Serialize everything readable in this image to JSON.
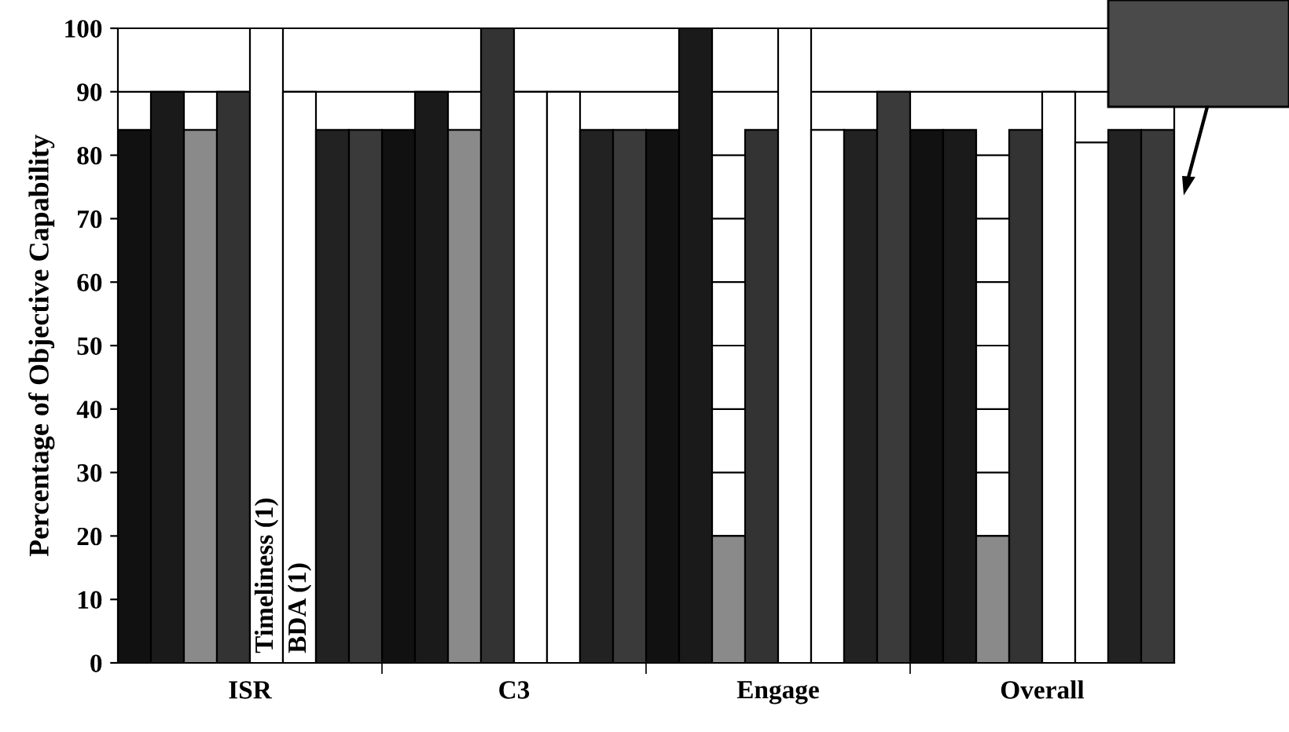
{
  "chart_data": {
    "type": "bar",
    "ylabel": "Percentage of Objective Capability",
    "categories": [
      "ISR",
      "C3",
      "Engage",
      "Overall"
    ],
    "series": [
      {
        "color": "#111111",
        "values": [
          84,
          84,
          84,
          84
        ]
      },
      {
        "color": "#1a1a1a",
        "values": [
          90,
          90,
          100,
          84
        ]
      },
      {
        "color": "#8a8a8a",
        "values": [
          84,
          84,
          20,
          20
        ]
      },
      {
        "color": "#333333",
        "values": [
          90,
          100,
          84,
          84
        ]
      },
      {
        "name": "Timeliness (1)",
        "color": "#ffffff",
        "values": [
          100,
          90,
          100,
          90
        ]
      },
      {
        "name": "BDA (1)",
        "color": "#ffffff",
        "values": [
          90,
          90,
          84,
          82
        ]
      },
      {
        "color": "#222222",
        "values": [
          84,
          84,
          84,
          84
        ]
      },
      {
        "color": "#3a3a3a",
        "values": [
          84,
          84,
          90,
          84
        ]
      }
    ],
    "ylim": [
      0,
      100
    ],
    "yticks": [
      0,
      10,
      20,
      30,
      40,
      50,
      60,
      70,
      80,
      90,
      100
    ],
    "grid": "y"
  }
}
